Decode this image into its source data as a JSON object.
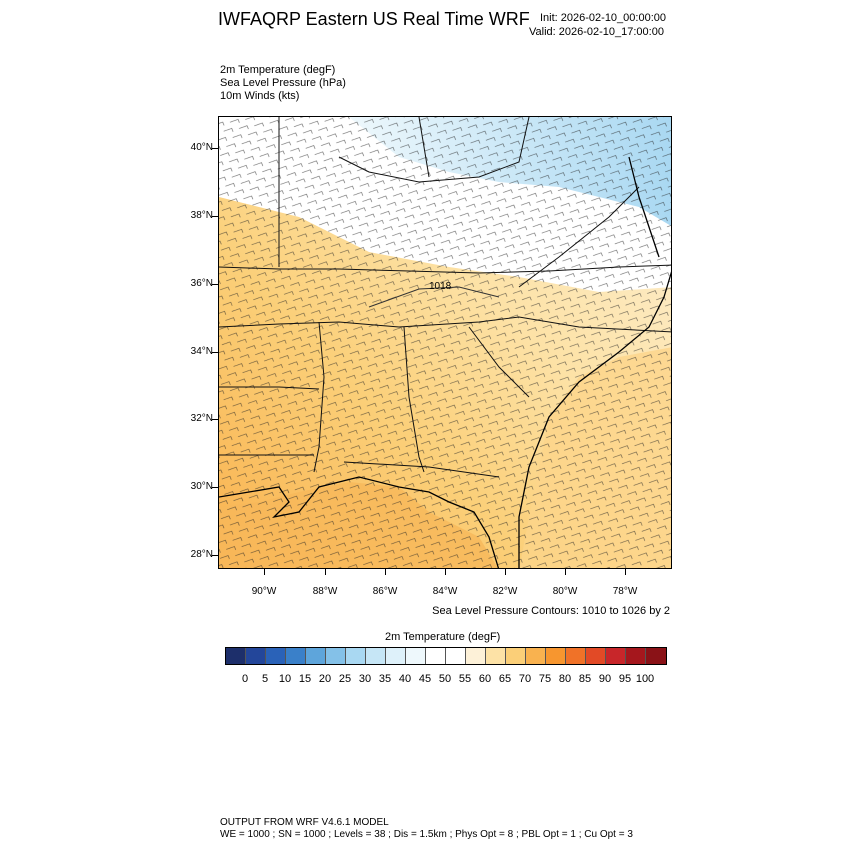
{
  "header": {
    "title": "IWFAQRP Eastern US Real Time WRF",
    "init": "Init: 2026-02-10_00:00:00",
    "valid": "Valid: 2026-02-10_17:00:00"
  },
  "fields": [
    "2m Temperature   (degF)",
    "Sea Level Pressure   (hPa)",
    "10m Winds   (kts)"
  ],
  "axes": {
    "lat_labels": [
      "40°N",
      "38°N",
      "36°N",
      "34°N",
      "32°N",
      "30°N",
      "28°N"
    ],
    "lon_labels": [
      "90°W",
      "88°W",
      "86°W",
      "84°W",
      "82°W",
      "80°W",
      "78°W"
    ]
  },
  "map": {
    "contour_label": "1018",
    "contour_note": "Sea Level Pressure Contours: 1010 to 1026 by 2"
  },
  "colorbar": {
    "title": "2m Temperature  (degF)",
    "labels": [
      "0",
      "5",
      "10",
      "15",
      "20",
      "25",
      "30",
      "35",
      "40",
      "45",
      "50",
      "55",
      "60",
      "65",
      "70",
      "75",
      "80",
      "85",
      "90",
      "95",
      "100"
    ],
    "colors": [
      "#1d2f6b",
      "#23469a",
      "#2a62b8",
      "#3a80c9",
      "#5ea5db",
      "#84c1e8",
      "#a9d8f2",
      "#c6e6f6",
      "#def1fa",
      "#eef8fc",
      "#ffffff",
      "#ffffff",
      "#fdf1d8",
      "#fde2a6",
      "#fbcf78",
      "#f9b24f",
      "#f7962f",
      "#f07228",
      "#e24a26",
      "#c8262a",
      "#a5171d",
      "#8a1217"
    ]
  },
  "footer": {
    "line1": "OUTPUT FROM WRF V4.6.1 MODEL",
    "line2": "WE = 1000 ; SN = 1000 ; Levels = 38 ; Dis = 1.5km ; Phys Opt = 8 ; PBL Opt = 1 ; Cu Opt = 3"
  }
}
